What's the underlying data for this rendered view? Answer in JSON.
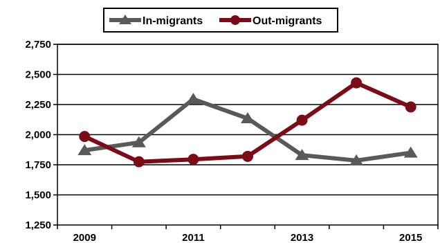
{
  "chart_data": {
    "type": "line",
    "title": "",
    "xlabel": "",
    "ylabel": "",
    "x": [
      2009,
      2010,
      2011,
      2012,
      2013,
      2014,
      2015
    ],
    "x_tick_labels": [
      "2009",
      "2011",
      "2013",
      "2015"
    ],
    "y_tick_labels": [
      "1,250",
      "1,500",
      "1,750",
      "2,000",
      "2,250",
      "2,500",
      "2,750"
    ],
    "ylim": [
      1250,
      2750
    ],
    "grid": "horizontal",
    "legend_position": "top",
    "series": [
      {
        "name": "In-migrants",
        "color": "#595959",
        "marker": "triangle",
        "values": [
          1870,
          1935,
          2295,
          2135,
          1830,
          1785,
          1850
        ]
      },
      {
        "name": "Out-migrants",
        "color": "#7b0b17",
        "marker": "circle",
        "values": [
          1985,
          1775,
          1795,
          1820,
          2120,
          2430,
          2230
        ]
      }
    ]
  }
}
